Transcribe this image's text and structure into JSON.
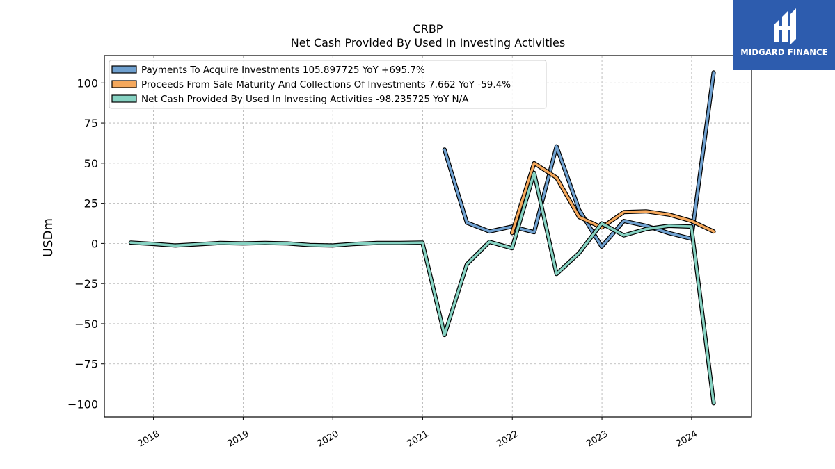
{
  "brand": {
    "name": "MIDGARD FINANCE",
    "color": "#2d5cae"
  },
  "chart_data": {
    "type": "line",
    "title": "CRBP",
    "subtitle": "Net Cash Provided By Used In Investing Activities",
    "ylabel": "USDm",
    "xlabel": "",
    "x_ticks": [
      "2018",
      "2019",
      "2020",
      "2021",
      "2022",
      "2023",
      "2024"
    ],
    "y_ticks": [
      100,
      75,
      50,
      25,
      0,
      -25,
      -50,
      -75,
      -100
    ],
    "xlim": [
      "2017-06-15",
      "2024-09-01"
    ],
    "ylim": [
      -108,
      117
    ],
    "grid": true,
    "legend_position": "top-left",
    "series": [
      {
        "name": "Payments To Acquire Investments  105.897725 YoY +695.7%",
        "color": "#6fa0cf",
        "points": [
          [
            "2021-03-31",
            58.5
          ],
          [
            "2021-06-30",
            13.0
          ],
          [
            "2021-09-30",
            7.5
          ],
          [
            "2021-12-31",
            10.5
          ],
          [
            "2022-03-31",
            7.0
          ],
          [
            "2022-06-30",
            60.5
          ],
          [
            "2022-09-30",
            21.0
          ],
          [
            "2022-12-31",
            -2.0
          ],
          [
            "2023-03-31",
            14.0
          ],
          [
            "2023-06-30",
            11.0
          ],
          [
            "2023-09-30",
            6.5
          ],
          [
            "2023-12-31",
            3.0
          ],
          [
            "2024-03-31",
            106.5
          ]
        ]
      },
      {
        "name": "Proceeds From Sale Maturity And Collections Of Investments  7.662 YoY -59.4%",
        "color": "#f5a85c",
        "points": [
          [
            "2021-12-31",
            6.5
          ],
          [
            "2022-03-31",
            50.0
          ],
          [
            "2022-06-30",
            41.0
          ],
          [
            "2022-09-30",
            16.5
          ],
          [
            "2022-12-31",
            10.0
          ],
          [
            "2023-03-31",
            19.5
          ],
          [
            "2023-06-30",
            20.0
          ],
          [
            "2023-09-30",
            18.0
          ],
          [
            "2023-12-31",
            14.0
          ],
          [
            "2024-03-31",
            7.5
          ]
        ]
      },
      {
        "name": "Net Cash Provided By Used In Investing Activities  -98.235725 YoY N/A",
        "color": "#86d2c2",
        "points": [
          [
            "2017-09-30",
            0.5
          ],
          [
            "2017-12-31",
            -0.3
          ],
          [
            "2018-03-31",
            -1.3
          ],
          [
            "2018-06-30",
            -0.5
          ],
          [
            "2018-09-30",
            0.3
          ],
          [
            "2018-12-31",
            0.0
          ],
          [
            "2019-03-31",
            0.3
          ],
          [
            "2019-06-30",
            0.0
          ],
          [
            "2019-09-30",
            -1.0
          ],
          [
            "2019-12-31",
            -1.3
          ],
          [
            "2020-03-31",
            -0.3
          ],
          [
            "2020-06-30",
            0.3
          ],
          [
            "2020-09-30",
            0.3
          ],
          [
            "2020-12-31",
            0.5
          ],
          [
            "2021-03-31",
            -57.0
          ],
          [
            "2021-06-30",
            -13.0
          ],
          [
            "2021-09-30",
            1.0
          ],
          [
            "2021-12-31",
            -3.0
          ],
          [
            "2022-03-31",
            44.0
          ],
          [
            "2022-06-30",
            -19.0
          ],
          [
            "2022-09-30",
            -6.0
          ],
          [
            "2022-12-31",
            12.5
          ],
          [
            "2023-03-31",
            5.0
          ],
          [
            "2023-06-30",
            9.0
          ],
          [
            "2023-09-30",
            11.0
          ],
          [
            "2023-12-31",
            10.5
          ],
          [
            "2024-03-31",
            -99.5
          ]
        ]
      }
    ]
  }
}
